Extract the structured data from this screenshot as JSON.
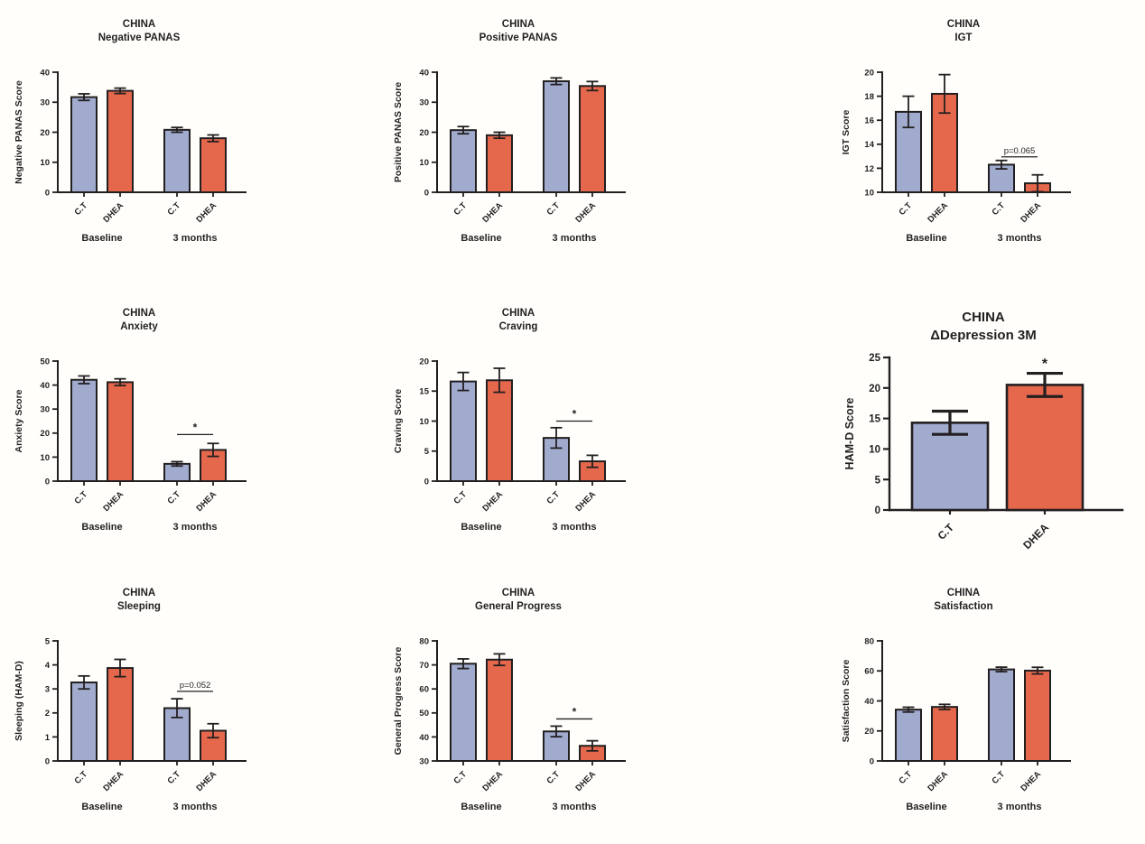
{
  "figure_title": "CHINA study outcome bar charts",
  "colors": {
    "ct_bar": "#A0ABCE",
    "dhea_bar": "#E5684C",
    "axis": "#231f20",
    "error_bar": "#231f20",
    "background": "#FFFEFB"
  },
  "series": [
    {
      "name": "C.T",
      "color_key": "ct_bar"
    },
    {
      "name": "DHEA",
      "color_key": "dhea_bar"
    }
  ],
  "chart_data": [
    {
      "id": "negative-panas",
      "type": "bar",
      "title": "CHINA",
      "subtitle": "Negative PANAS",
      "ylabel": "Negative PANAS Score",
      "ylim": [
        0,
        40
      ],
      "yticks": [
        0,
        10,
        20,
        30,
        40
      ],
      "bar_labels": [
        "C.T",
        "DHEA",
        "C.T",
        "DHEA"
      ],
      "values": [
        31.7,
        33.8,
        20.8,
        18.0
      ],
      "errors": [
        1.1,
        0.9,
        0.8,
        1.1
      ],
      "groups": [
        {
          "label": "Baseline",
          "bars": [
            0,
            1
          ]
        },
        {
          "label": "3 months",
          "bars": [
            2,
            3
          ]
        }
      ],
      "annotation": null
    },
    {
      "id": "positive-panas",
      "type": "bar",
      "title": "CHINA",
      "subtitle": "Positive PANAS",
      "ylabel": "Positive PANAS Score",
      "ylim": [
        0,
        40
      ],
      "yticks": [
        0,
        10,
        20,
        30,
        40
      ],
      "bar_labels": [
        "C.T",
        "DHEA",
        "C.T",
        "DHEA"
      ],
      "values": [
        20.7,
        19.0,
        37.0,
        35.4
      ],
      "errors": [
        1.2,
        1.0,
        1.1,
        1.5
      ],
      "groups": [
        {
          "label": "Baseline",
          "bars": [
            0,
            1
          ]
        },
        {
          "label": "3 months",
          "bars": [
            2,
            3
          ]
        }
      ],
      "annotation": null
    },
    {
      "id": "igt",
      "type": "bar",
      "title": "CHINA",
      "subtitle": "IGT",
      "ylabel": "IGT Score",
      "ylim": [
        10,
        20
      ],
      "yticks": [
        10,
        12,
        14,
        16,
        18,
        20
      ],
      "bar_labels": [
        "C.T",
        "DHEA",
        "C.T",
        "DHEA"
      ],
      "values": [
        16.7,
        18.2,
        12.3,
        10.75
      ],
      "errors": [
        1.3,
        1.6,
        0.35,
        0.7
      ],
      "groups": [
        {
          "label": "Baseline",
          "bars": [
            0,
            1
          ]
        },
        {
          "label": "3 months",
          "bars": [
            2,
            3
          ]
        }
      ],
      "annotation": {
        "type": "bracket",
        "text": "p=0.065",
        "between": [
          2,
          3
        ],
        "y": 12.95,
        "style": "plain"
      }
    },
    {
      "id": "anxiety",
      "type": "bar",
      "title": "CHINA",
      "subtitle": "Anxiety",
      "ylabel": "Anxiety Score",
      "ylim": [
        0,
        50
      ],
      "yticks": [
        0,
        10,
        20,
        30,
        40,
        50
      ],
      "bar_labels": [
        "C.T",
        "DHEA",
        "C.T",
        "DHEA"
      ],
      "values": [
        42.2,
        41.2,
        7.2,
        13.0
      ],
      "errors": [
        1.6,
        1.4,
        0.9,
        2.7
      ],
      "groups": [
        {
          "label": "Baseline",
          "bars": [
            0,
            1
          ]
        },
        {
          "label": "3 months",
          "bars": [
            2,
            3
          ]
        }
      ],
      "annotation": {
        "type": "bracket",
        "text": "*",
        "between": [
          2,
          3
        ],
        "y": 19.4,
        "style": "star"
      }
    },
    {
      "id": "craving",
      "type": "bar",
      "title": "CHINA",
      "subtitle": "Craving",
      "ylabel": "Craving Score",
      "ylim": [
        0,
        20
      ],
      "yticks": [
        0,
        5,
        10,
        15,
        20
      ],
      "bar_labels": [
        "C.T",
        "DHEA",
        "C.T",
        "DHEA"
      ],
      "values": [
        16.6,
        16.8,
        7.2,
        3.3
      ],
      "errors": [
        1.5,
        2.0,
        1.7,
        1.0
      ],
      "groups": [
        {
          "label": "Baseline",
          "bars": [
            0,
            1
          ]
        },
        {
          "label": "3 months",
          "bars": [
            2,
            3
          ]
        }
      ],
      "annotation": {
        "type": "bracket",
        "text": "*",
        "between": [
          2,
          3
        ],
        "y": 10.0,
        "style": "star"
      }
    },
    {
      "id": "delta-depression-3m",
      "type": "bar",
      "title": "CHINA",
      "subtitle": "ΔDepression 3M",
      "ylabel": "HAM-D Score",
      "ylim": [
        0,
        25
      ],
      "yticks": [
        0,
        5,
        10,
        15,
        20,
        25
      ],
      "bar_labels": [
        "C.T",
        "DHEA"
      ],
      "values": [
        14.3,
        20.5
      ],
      "errors": [
        1.9,
        1.9
      ],
      "groups": [],
      "annotation": {
        "type": "star",
        "text": "*",
        "bar": 1,
        "y": 23.2
      }
    },
    {
      "id": "sleeping",
      "type": "bar",
      "title": "CHINA",
      "subtitle": "Sleeping",
      "ylabel": "Sleeping (HAM-D)",
      "ylim": [
        0,
        5
      ],
      "yticks": [
        0,
        1,
        2,
        3,
        4,
        5
      ],
      "bar_labels": [
        "C.T",
        "DHEA",
        "C.T",
        "DHEA"
      ],
      "values": [
        3.27,
        3.87,
        2.2,
        1.26
      ],
      "errors": [
        0.27,
        0.36,
        0.39,
        0.29
      ],
      "groups": [
        {
          "label": "Baseline",
          "bars": [
            0,
            1
          ]
        },
        {
          "label": "3 months",
          "bars": [
            2,
            3
          ]
        }
      ],
      "annotation": {
        "type": "bracket",
        "text": "p=0.052",
        "between": [
          2,
          3
        ],
        "y": 2.9,
        "style": "plain"
      }
    },
    {
      "id": "general-progress",
      "type": "bar",
      "title": "CHINA",
      "subtitle": "General Progress",
      "ylabel": "General Progress Score",
      "ylim": [
        30,
        80
      ],
      "yticks": [
        30,
        40,
        50,
        60,
        70,
        80
      ],
      "bar_labels": [
        "C.T",
        "DHEA",
        "C.T",
        "DHEA"
      ],
      "values": [
        70.5,
        72.2,
        42.3,
        36.3
      ],
      "errors": [
        2.0,
        2.4,
        2.2,
        2.1
      ],
      "groups": [
        {
          "label": "Baseline",
          "bars": [
            0,
            1
          ]
        },
        {
          "label": "3 months",
          "bars": [
            2,
            3
          ]
        }
      ],
      "annotation": {
        "type": "bracket",
        "text": "*",
        "between": [
          2,
          3
        ],
        "y": 47.5,
        "style": "star"
      }
    },
    {
      "id": "satisfaction",
      "type": "bar",
      "title": "CHINA",
      "subtitle": "Satisfaction",
      "ylabel": "Satisfaction Score",
      "ylim": [
        0,
        80
      ],
      "yticks": [
        0,
        20,
        40,
        60,
        80
      ],
      "bar_labels": [
        "C.T",
        "DHEA",
        "C.T",
        "DHEA"
      ],
      "values": [
        34.2,
        36.0,
        61.0,
        60.2
      ],
      "errors": [
        1.6,
        1.7,
        1.5,
        2.2
      ],
      "groups": [
        {
          "label": "Baseline",
          "bars": [
            0,
            1
          ]
        },
        {
          "label": "3 months",
          "bars": [
            2,
            3
          ]
        }
      ],
      "annotation": null
    }
  ]
}
